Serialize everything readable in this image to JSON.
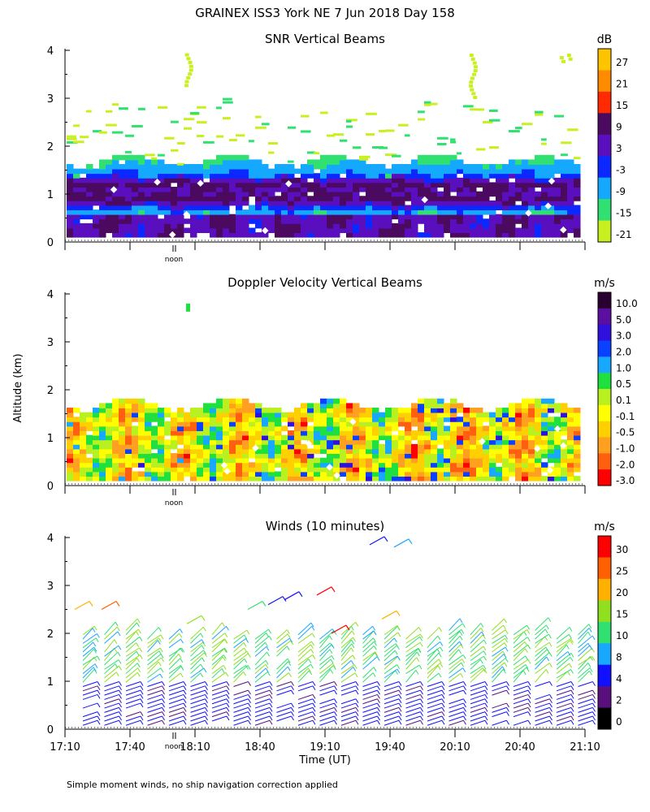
{
  "header": {
    "title": "GRAINEX ISS3 York NE   7 Jun 2018 Day 158"
  },
  "footer": {
    "note": "Simple moment winds, no ship navigation correction applied"
  },
  "axes": {
    "ylabel": "Altitude (km)",
    "xlabel": "Time (UT)",
    "y_ticks": [
      "0",
      "1",
      "2",
      "3",
      "4"
    ],
    "x_ticks": [
      "17:10",
      "17:40",
      "18:10",
      "18:40",
      "19:10",
      "19:40",
      "20:10",
      "20:40",
      "21:10"
    ],
    "noon_label": "noon"
  },
  "chart_data": [
    {
      "type": "heatmap",
      "title": "SNR Vertical Beams",
      "xlabel": "Time (UT)",
      "ylabel": "Altitude (km)",
      "x_range": [
        "17:10",
        "21:10"
      ],
      "ylim": [
        0,
        4
      ],
      "colorbar": {
        "unit": "dB",
        "tick_labels": [
          "27",
          "21",
          "15",
          "9",
          "3",
          "-3",
          "-9",
          "-15",
          "-21"
        ],
        "colors": [
          "#ffc400",
          "#ff8c00",
          "#ff2a00",
          "#4b0a5f",
          "#5a0fbe",
          "#0a28ff",
          "#15a8ff",
          "#30e070",
          "#c8f020"
        ]
      },
      "features": {
        "strongest_band_km": [
          0.7,
          1.3
        ],
        "echo_top_km": 1.8,
        "sparse_echo_km": [
          1.9,
          4.0
        ]
      }
    },
    {
      "type": "heatmap",
      "title": "Doppler Velocity Vertical Beams",
      "xlabel": "Time (UT)",
      "ylabel": "Altitude (km)",
      "x_range": [
        "17:10",
        "21:10"
      ],
      "ylim": [
        0,
        4
      ],
      "colorbar": {
        "unit": "m/s",
        "tick_labels": [
          "10.0",
          "5.0",
          "3.0",
          "2.0",
          "1.0",
          "0.5",
          "0.1",
          "-0.1",
          "-0.5",
          "-1.0",
          "-2.0",
          "-3.0"
        ],
        "colors": [
          "#2a0030",
          "#5a0fa0",
          "#3010dc",
          "#0a40ff",
          "#18a8ff",
          "#20e040",
          "#b8f020",
          "#ffff00",
          "#ffd000",
          "#ffa020",
          "#ff6010",
          "#ff0000"
        ]
      },
      "features": {
        "echo_top_km": 1.8
      }
    },
    {
      "type": "wind_barbs",
      "title": "Winds (10 minutes)",
      "xlabel": "Time (UT)",
      "ylabel": "Altitude (km)",
      "x_range": [
        "17:10",
        "21:10"
      ],
      "ylim": [
        0,
        4
      ],
      "colorbar": {
        "unit": "m/s",
        "tick_labels": [
          "30",
          "25",
          "20",
          "15",
          "10",
          "8",
          "4",
          "2",
          "0"
        ],
        "colors": [
          "#ff0000",
          "#ff6000",
          "#ffb000",
          "#90e020",
          "#30e070",
          "#18a8ff",
          "#1010ff",
          "#5a0f7f",
          "#000000"
        ]
      }
    }
  ]
}
